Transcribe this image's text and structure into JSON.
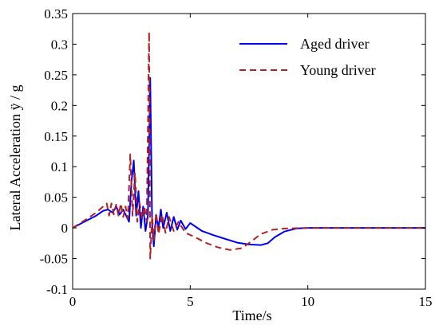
{
  "chart_data": {
    "type": "line",
    "title": "",
    "xlabel": "Time/s",
    "ylabel": "Lateral Acceleration ÿ / g",
    "xlim": [
      0,
      15
    ],
    "ylim": [
      -0.1,
      0.35
    ],
    "xticks": [
      0,
      5,
      10,
      15
    ],
    "yticks": [
      -0.1,
      -0.05,
      0,
      0.05,
      0.1,
      0.15,
      0.2,
      0.25,
      0.3,
      0.35
    ],
    "grid": false,
    "legend_position": "top-right",
    "series": [
      {
        "name": "Aged driver",
        "color": "#0000ee",
        "style": "solid",
        "points": [
          [
            0,
            0
          ],
          [
            0.5,
            0.01
          ],
          [
            1.0,
            0.02
          ],
          [
            1.3,
            0.028
          ],
          [
            1.5,
            0.03
          ],
          [
            1.7,
            0.025
          ],
          [
            1.85,
            0.035
          ],
          [
            2.0,
            0.022
          ],
          [
            2.15,
            0.03
          ],
          [
            2.3,
            0.018
          ],
          [
            2.4,
            0.01
          ],
          [
            2.5,
            0.075
          ],
          [
            2.6,
            0.11
          ],
          [
            2.7,
            0.02
          ],
          [
            2.8,
            0.06
          ],
          [
            2.9,
            0.0
          ],
          [
            3.0,
            0.035
          ],
          [
            3.1,
            -0.005
          ],
          [
            3.2,
            0.02
          ],
          [
            3.3,
            0.245
          ],
          [
            3.38,
            0.005
          ],
          [
            3.45,
            -0.03
          ],
          [
            3.55,
            0.02
          ],
          [
            3.65,
            0.0
          ],
          [
            3.75,
            0.03
          ],
          [
            3.85,
            0.0
          ],
          [
            4.0,
            0.025
          ],
          [
            4.15,
            -0.005
          ],
          [
            4.3,
            0.018
          ],
          [
            4.45,
            -0.003
          ],
          [
            4.6,
            0.012
          ],
          [
            4.8,
            -0.002
          ],
          [
            5.0,
            0.008
          ],
          [
            5.5,
            -0.005
          ],
          [
            6.0,
            -0.012
          ],
          [
            6.5,
            -0.018
          ],
          [
            7.0,
            -0.024
          ],
          [
            7.5,
            -0.027
          ],
          [
            8.0,
            -0.028
          ],
          [
            8.3,
            -0.025
          ],
          [
            8.6,
            -0.015
          ],
          [
            9.0,
            -0.006
          ],
          [
            9.5,
            -0.001
          ],
          [
            10.0,
            0.0
          ],
          [
            12.0,
            0.0
          ],
          [
            15.0,
            0.0
          ]
        ]
      },
      {
        "name": "Young driver",
        "color": "#b22222",
        "style": "dashed",
        "points": [
          [
            0,
            0
          ],
          [
            0.5,
            0.012
          ],
          [
            1.0,
            0.025
          ],
          [
            1.3,
            0.035
          ],
          [
            1.45,
            0.04
          ],
          [
            1.55,
            0.02
          ],
          [
            1.65,
            0.04
          ],
          [
            1.75,
            0.022
          ],
          [
            1.85,
            0.038
          ],
          [
            1.95,
            0.02
          ],
          [
            2.05,
            0.04
          ],
          [
            2.15,
            0.018
          ],
          [
            2.25,
            0.035
          ],
          [
            2.35,
            0.015
          ],
          [
            2.45,
            0.12
          ],
          [
            2.55,
            0.02
          ],
          [
            2.65,
            0.09
          ],
          [
            2.75,
            0.01
          ],
          [
            2.85,
            0.04
          ],
          [
            2.95,
            0.015
          ],
          [
            3.05,
            0.035
          ],
          [
            3.15,
            0.01
          ],
          [
            3.25,
            0.32
          ],
          [
            3.3,
            -0.05
          ],
          [
            3.38,
            0.02
          ],
          [
            3.45,
            -0.02
          ],
          [
            3.55,
            0.025
          ],
          [
            3.65,
            -0.01
          ],
          [
            3.8,
            0.022
          ],
          [
            3.95,
            -0.008
          ],
          [
            4.1,
            0.018
          ],
          [
            4.3,
            -0.005
          ],
          [
            4.5,
            0.01
          ],
          [
            4.8,
            -0.008
          ],
          [
            5.2,
            -0.015
          ],
          [
            5.7,
            -0.025
          ],
          [
            6.2,
            -0.032
          ],
          [
            6.7,
            -0.036
          ],
          [
            7.2,
            -0.033
          ],
          [
            7.6,
            -0.022
          ],
          [
            8.0,
            -0.01
          ],
          [
            8.5,
            -0.003
          ],
          [
            9.0,
            -0.001
          ],
          [
            10.0,
            0.0
          ],
          [
            15.0,
            0.0
          ]
        ]
      }
    ]
  }
}
